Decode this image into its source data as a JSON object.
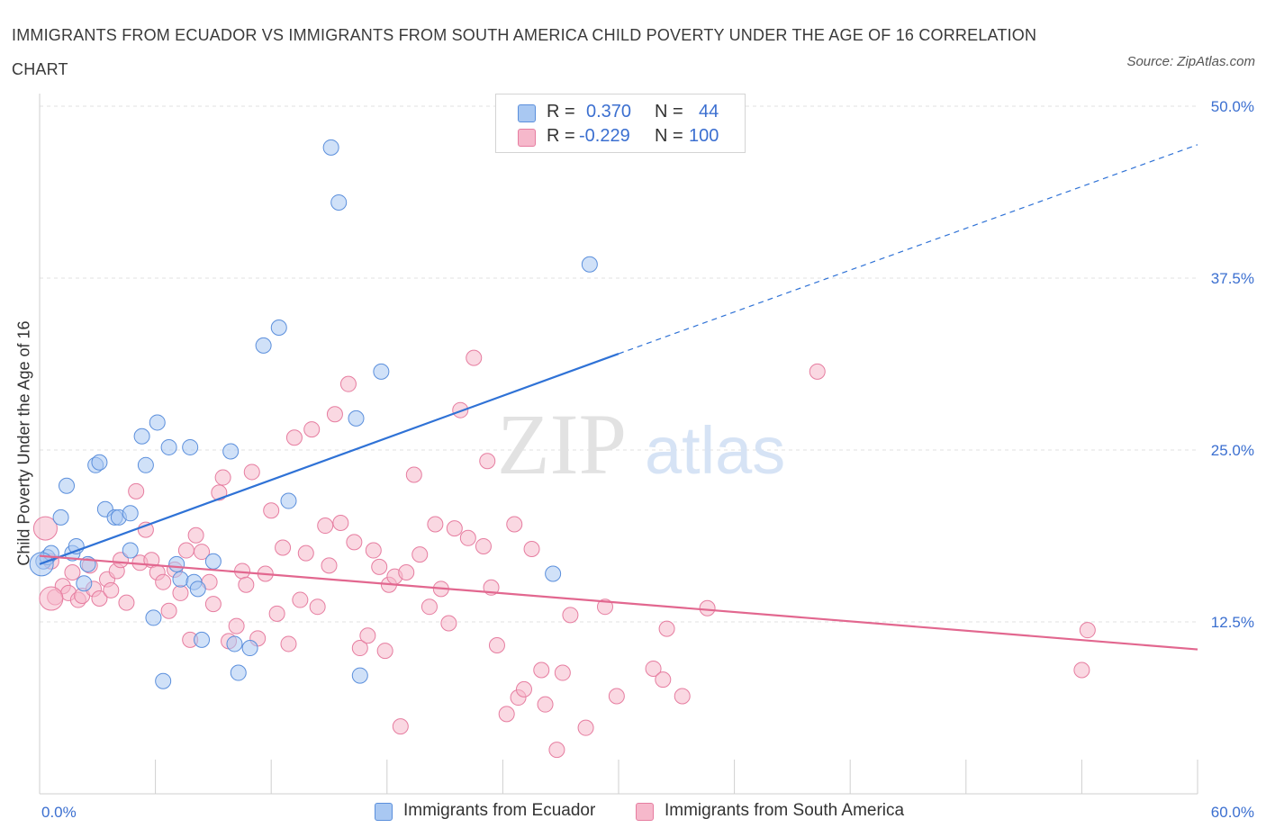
{
  "title": "IMMIGRANTS FROM ECUADOR VS IMMIGRANTS FROM SOUTH AMERICA CHILD POVERTY UNDER THE AGE OF 16 CORRELATION CHART",
  "source": "Source: ZipAtlas.com",
  "watermark": {
    "zip": "ZIP",
    "atlas": "atlas"
  },
  "legend": {
    "rows": [
      {
        "r_label": "R =",
        "r_value": "0.370",
        "n_label": "N =",
        "n_value": "44",
        "color": "#a9c8f2"
      },
      {
        "r_label": "R =",
        "r_value": "-0.229",
        "n_label": "N =",
        "n_value": "100",
        "color": "#f6b8cb"
      }
    ]
  },
  "bottom_legend": [
    {
      "label": "Immigrants from Ecuador",
      "color": "#a9c8f2"
    },
    {
      "label": "Immigrants from South America",
      "color": "#f6b8cb"
    }
  ],
  "chart_data": {
    "type": "scatter",
    "title": "IMMIGRANTS FROM ECUADOR VS IMMIGRANTS FROM SOUTH AMERICA CHILD POVERTY UNDER THE AGE OF 16 CORRELATION CHART",
    "xlabel": "",
    "ylabel": "Child Poverty Under the Age of 16",
    "xlim": [
      0,
      60
    ],
    "ylim": [
      0,
      50
    ],
    "x_tick_labels": [
      "0.0%",
      "60.0%"
    ],
    "y_ticks": [
      12.5,
      25.0,
      37.5,
      50.0
    ],
    "y_tick_labels": [
      "12.5%",
      "25.0%",
      "37.5%",
      "50.0%"
    ],
    "grid": true,
    "legend_position": "top-center",
    "series": [
      {
        "name": "Immigrants from Ecuador",
        "color": "#5b8fdc",
        "fill": "#a9c8f2",
        "trend": {
          "x": [
            0,
            30
          ],
          "y": [
            16.7,
            32.0
          ],
          "dashed_extension_to": [
            60,
            47.2
          ],
          "color": "#2f72d6"
        },
        "points": [
          [
            0.2,
            16.9
          ],
          [
            0.4,
            17.2
          ],
          [
            0.6,
            17.5
          ],
          [
            1.1,
            20.1
          ],
          [
            1.4,
            22.4
          ],
          [
            1.7,
            17.5
          ],
          [
            1.9,
            18.0
          ],
          [
            2.3,
            15.3
          ],
          [
            2.5,
            16.7
          ],
          [
            2.9,
            23.9
          ],
          [
            3.1,
            24.1
          ],
          [
            3.4,
            20.7
          ],
          [
            3.9,
            20.1
          ],
          [
            4.1,
            20.1
          ],
          [
            4.7,
            20.4
          ],
          [
            4.7,
            17.7
          ],
          [
            5.3,
            26.0
          ],
          [
            5.5,
            23.9
          ],
          [
            5.9,
            12.8
          ],
          [
            6.1,
            27.0
          ],
          [
            6.4,
            8.2
          ],
          [
            6.7,
            25.2
          ],
          [
            7.1,
            16.7
          ],
          [
            7.3,
            15.6
          ],
          [
            7.8,
            25.2
          ],
          [
            8.0,
            15.4
          ],
          [
            8.2,
            14.9
          ],
          [
            8.4,
            11.2
          ],
          [
            9.0,
            16.9
          ],
          [
            9.9,
            24.9
          ],
          [
            10.1,
            10.9
          ],
          [
            10.3,
            8.8
          ],
          [
            10.9,
            10.6
          ],
          [
            11.6,
            32.6
          ],
          [
            12.4,
            33.9
          ],
          [
            12.9,
            21.3
          ],
          [
            15.1,
            47.0
          ],
          [
            15.5,
            43.0
          ],
          [
            16.4,
            27.3
          ],
          [
            16.6,
            8.6
          ],
          [
            17.7,
            30.7
          ],
          [
            26.6,
            16.0
          ],
          [
            28.5,
            38.5
          ],
          [
            0.1,
            16.7
          ]
        ]
      },
      {
        "name": "Immigrants from South America",
        "color": "#e67da0",
        "fill": "#f6b8cb",
        "trend": {
          "x": [
            0,
            60
          ],
          "y": [
            17.3,
            10.5
          ],
          "color": "#e2678f"
        },
        "points": [
          [
            0.3,
            19.3
          ],
          [
            0.6,
            16.9
          ],
          [
            0.8,
            14.3
          ],
          [
            1.2,
            15.1
          ],
          [
            1.5,
            14.6
          ],
          [
            1.7,
            16.1
          ],
          [
            2.0,
            14.1
          ],
          [
            2.2,
            14.4
          ],
          [
            2.6,
            16.6
          ],
          [
            2.8,
            14.9
          ],
          [
            3.1,
            14.2
          ],
          [
            3.5,
            15.6
          ],
          [
            3.7,
            14.8
          ],
          [
            4.0,
            16.2
          ],
          [
            4.2,
            17.0
          ],
          [
            4.5,
            13.9
          ],
          [
            5.0,
            22.0
          ],
          [
            5.2,
            16.8
          ],
          [
            5.5,
            19.2
          ],
          [
            5.8,
            17.0
          ],
          [
            6.1,
            16.1
          ],
          [
            6.4,
            15.4
          ],
          [
            6.7,
            13.3
          ],
          [
            7.0,
            16.3
          ],
          [
            7.3,
            14.6
          ],
          [
            7.6,
            17.7
          ],
          [
            7.8,
            11.2
          ],
          [
            8.1,
            18.8
          ],
          [
            8.4,
            17.6
          ],
          [
            8.8,
            15.4
          ],
          [
            9.0,
            13.8
          ],
          [
            9.3,
            21.9
          ],
          [
            9.5,
            23.0
          ],
          [
            9.8,
            11.1
          ],
          [
            10.2,
            12.2
          ],
          [
            10.5,
            16.2
          ],
          [
            10.7,
            15.2
          ],
          [
            11.0,
            23.4
          ],
          [
            11.3,
            11.3
          ],
          [
            11.7,
            16.0
          ],
          [
            12.0,
            20.6
          ],
          [
            12.3,
            13.1
          ],
          [
            12.6,
            17.9
          ],
          [
            12.9,
            10.9
          ],
          [
            13.2,
            25.9
          ],
          [
            13.5,
            14.1
          ],
          [
            13.8,
            17.5
          ],
          [
            14.1,
            26.5
          ],
          [
            14.4,
            13.6
          ],
          [
            14.8,
            19.5
          ],
          [
            15.0,
            16.6
          ],
          [
            15.3,
            27.6
          ],
          [
            15.6,
            19.7
          ],
          [
            16.0,
            29.8
          ],
          [
            16.3,
            18.3
          ],
          [
            16.6,
            10.6
          ],
          [
            17.0,
            11.5
          ],
          [
            17.3,
            17.7
          ],
          [
            17.6,
            16.5
          ],
          [
            17.9,
            10.4
          ],
          [
            18.1,
            15.2
          ],
          [
            18.4,
            15.8
          ],
          [
            18.7,
            4.9
          ],
          [
            19.0,
            16.1
          ],
          [
            19.4,
            23.2
          ],
          [
            19.7,
            17.4
          ],
          [
            20.2,
            13.6
          ],
          [
            20.5,
            19.6
          ],
          [
            20.8,
            14.9
          ],
          [
            21.2,
            12.4
          ],
          [
            21.5,
            19.3
          ],
          [
            21.8,
            27.9
          ],
          [
            22.2,
            18.6
          ],
          [
            22.5,
            31.7
          ],
          [
            23.0,
            18.0
          ],
          [
            23.2,
            24.2
          ],
          [
            23.4,
            15.0
          ],
          [
            23.7,
            10.8
          ],
          [
            24.2,
            5.8
          ],
          [
            24.6,
            19.6
          ],
          [
            24.8,
            7.0
          ],
          [
            25.1,
            7.6
          ],
          [
            25.5,
            17.8
          ],
          [
            26.0,
            9.0
          ],
          [
            26.2,
            6.5
          ],
          [
            26.8,
            3.2
          ],
          [
            27.1,
            8.8
          ],
          [
            27.5,
            13.0
          ],
          [
            28.3,
            4.8
          ],
          [
            29.3,
            13.6
          ],
          [
            29.9,
            7.1
          ],
          [
            31.8,
            9.1
          ],
          [
            32.3,
            8.3
          ],
          [
            32.5,
            12.0
          ],
          [
            33.3,
            7.1
          ],
          [
            34.6,
            13.5
          ],
          [
            40.3,
            30.7
          ],
          [
            54.0,
            9.0
          ],
          [
            54.3,
            11.9
          ],
          [
            0.6,
            14.2
          ]
        ]
      }
    ]
  }
}
